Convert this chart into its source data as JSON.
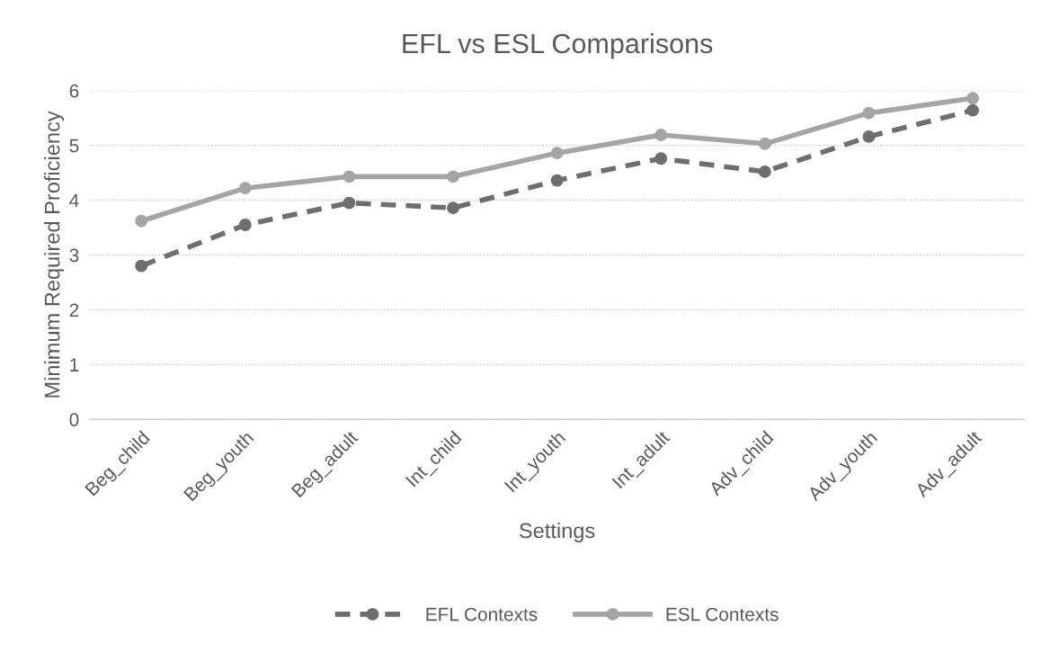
{
  "chart_data": {
    "type": "line",
    "title": "EFL vs ESL Comparisons",
    "xlabel": "Settings",
    "ylabel": "Minimum Required Proficiency",
    "categories": [
      "Beg_child",
      "Beg_youth",
      "Beg_adult",
      "Int_child",
      "Int_youth",
      "Int_adult",
      "Adv_child",
      "Adv_youth",
      "Adv_adult"
    ],
    "series": [
      {
        "name": "EFL Contexts",
        "color": "#6e6e6e",
        "line_style": "dashed",
        "values": [
          2.8,
          3.55,
          3.95,
          3.86,
          4.36,
          4.76,
          4.52,
          5.16,
          5.64
        ]
      },
      {
        "name": "ESL Contexts",
        "color": "#a5a5a5",
        "line_style": "solid",
        "values": [
          3.62,
          4.22,
          4.43,
          4.43,
          4.86,
          5.19,
          5.03,
          5.59,
          5.86
        ]
      }
    ],
    "ylim": [
      0,
      6
    ],
    "yticks": [
      0,
      1,
      2,
      3,
      4,
      5,
      6
    ],
    "grid": "y",
    "legend": "bottom",
    "marker": "circle"
  }
}
